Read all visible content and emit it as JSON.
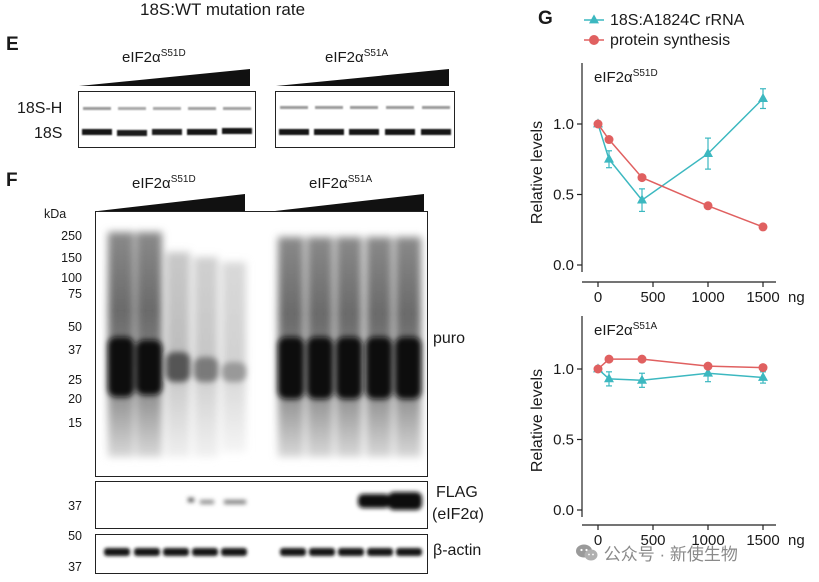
{
  "header": {
    "caption": "18S:WT mutation rate"
  },
  "panel_e": {
    "letter": "E",
    "group_left": "eIF2α",
    "group_left_sup": "S51D",
    "group_right": "eIF2α",
    "group_right_sup": "S51A",
    "band_labels": [
      "18S-H",
      "18S"
    ]
  },
  "panel_f": {
    "letter": "F",
    "group_left": "eIF2α",
    "group_left_sup": "S51D",
    "group_right": "eIF2α",
    "group_right_sup": "S51A",
    "kda_title": "kDa",
    "kda_markers": [
      "250",
      "150",
      "100",
      "75",
      "50",
      "37",
      "25",
      "20",
      "15"
    ],
    "puro_label": "puro",
    "flag_label": "FLAG",
    "flag_sublabel": "(eIF2α)",
    "flag_kda": "37",
    "actin_label": "β-actin",
    "actin_kda_top": "50",
    "actin_kda_bottom": "37"
  },
  "panel_g": {
    "letter": "G"
  },
  "watermark": {
    "text": "公众号 · 新使生物",
    "icon": "wechat-icon"
  },
  "colors": {
    "rrna": "#3cb8c0",
    "protein": "#e06060",
    "axis": "#222222"
  },
  "chart_data": [
    {
      "type": "line",
      "title": "eIF2α",
      "title_sup": "S51D",
      "xlabel": "ng",
      "ylabel": "Relative levels",
      "xlim": [
        0,
        1500
      ],
      "ylim": [
        0,
        1.25
      ],
      "xticks": [
        "0",
        "500",
        "1000",
        "1500"
      ],
      "yticks": [
        "0.0",
        "0.5",
        "1.0"
      ],
      "legend_position": "top",
      "series": [
        {
          "name": "18S:A1824C rRNA",
          "marker": "triangle",
          "x": [
            0,
            100,
            400,
            1000,
            1500
          ],
          "y": [
            1.0,
            0.75,
            0.46,
            0.79,
            1.18
          ],
          "err": [
            0.02,
            0.06,
            0.08,
            0.11,
            0.07
          ]
        },
        {
          "name": "protein synthesis",
          "marker": "circle",
          "x": [
            0,
            100,
            400,
            1000,
            1500
          ],
          "y": [
            1.0,
            0.89,
            0.62,
            0.42,
            0.27
          ],
          "err": [
            0,
            0,
            0,
            0,
            0
          ]
        }
      ]
    },
    {
      "type": "line",
      "title": "eIF2α",
      "title_sup": "S51A",
      "xlabel": "ng",
      "ylabel": "Relative levels",
      "xlim": [
        0,
        1500
      ],
      "ylim": [
        0,
        1.25
      ],
      "xticks": [
        "0",
        "500",
        "1000",
        "1500"
      ],
      "yticks": [
        "0.0",
        "0.5",
        "1.0"
      ],
      "series": [
        {
          "name": "18S:A1824C rRNA",
          "marker": "triangle",
          "x": [
            0,
            100,
            400,
            1000,
            1500
          ],
          "y": [
            1.0,
            0.93,
            0.92,
            0.97,
            0.94
          ],
          "err": [
            0.02,
            0.05,
            0.05,
            0.06,
            0.04
          ]
        },
        {
          "name": "protein synthesis",
          "marker": "circle",
          "x": [
            0,
            100,
            400,
            1000,
            1500
          ],
          "y": [
            1.0,
            1.07,
            1.07,
            1.02,
            1.01
          ],
          "err": [
            0,
            0,
            0,
            0,
            0
          ]
        }
      ]
    }
  ]
}
